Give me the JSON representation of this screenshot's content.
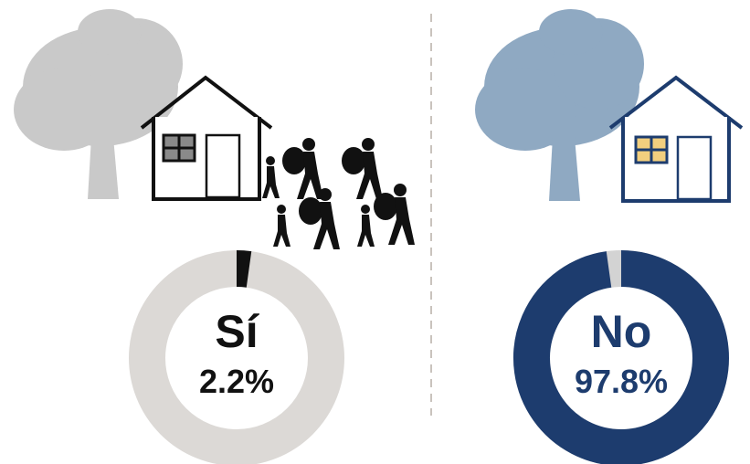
{
  "chart_data": [
    {
      "type": "donut",
      "categories": [
        "Sí"
      ],
      "values": [
        2.2
      ],
      "value_labels": [
        "2.2%"
      ],
      "color": "#111111",
      "track_color": "#dcd9d6",
      "text_color": "#111111"
    },
    {
      "type": "donut",
      "categories": [
        "No"
      ],
      "values": [
        97.8
      ],
      "value_labels": [
        "97.8%"
      ],
      "color": "#1d3c6e",
      "track_color": "#d3d3d3",
      "text_color": "#1d3c6e"
    }
  ]
}
